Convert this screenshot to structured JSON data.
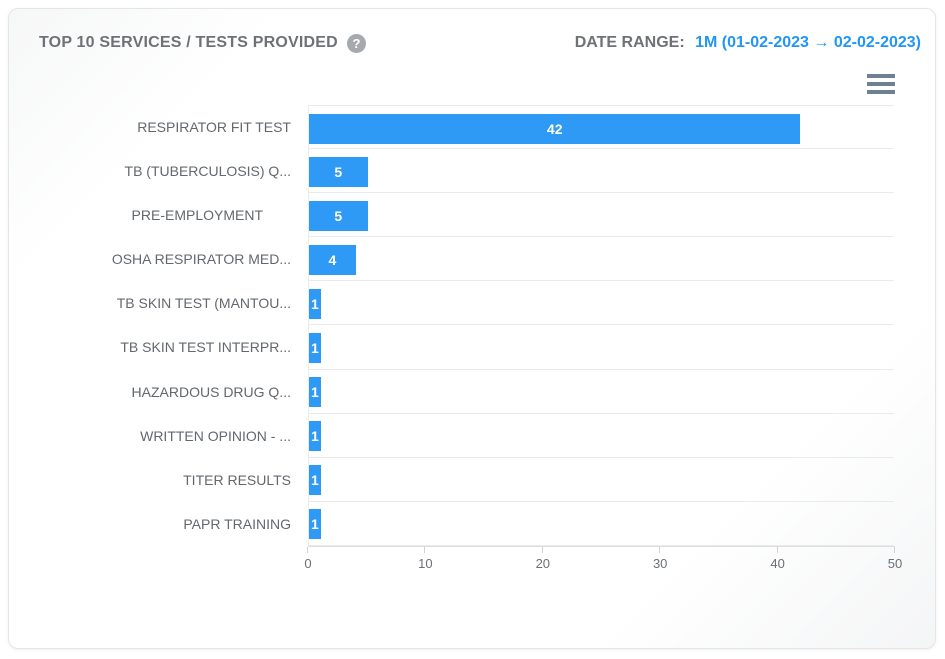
{
  "header": {
    "title": "TOP 10 SERVICES / TESTS PROVIDED",
    "help_icon": "question-mark-icon",
    "help_glyph": "?",
    "date_range_label": "DATE RANGE:",
    "date_range_value": "1M (01-02-2023 → 02-02-2023)"
  },
  "toolbar": {
    "menu_icon": "hamburger-menu-icon"
  },
  "colors": {
    "bar_fill": "#2f9af5",
    "date_range_blue": "#2196f3",
    "title_gray": "#6e7277",
    "menu_icon_gray": "#6e8192",
    "grid_line": "#e9eaeb",
    "value_label": "#ffffff"
  },
  "chart_data": {
    "type": "bar",
    "orientation": "horizontal",
    "title": "TOP 10 SERVICES / TESTS PROVIDED",
    "categories": [
      "RESPIRATOR FIT TEST",
      "TB (TUBERCULOSIS) Q...",
      "PRE-EMPLOYMENT",
      "OSHA RESPIRATOR MED...",
      "TB SKIN TEST (MANTOU...",
      "TB SKIN TEST INTERPR...",
      "HAZARDOUS DRUG Q...",
      "WRITTEN OPINION - ...",
      "TITER RESULTS",
      "PAPR TRAINING"
    ],
    "values": [
      42,
      5,
      5,
      4,
      1,
      1,
      1,
      1,
      1,
      1
    ],
    "data_labels_shown": true,
    "xlabel": "",
    "ylabel": "",
    "xlim": [
      0,
      50
    ],
    "x_ticks": [
      "0",
      "10",
      "20",
      "30",
      "40",
      "50"
    ],
    "grid": "horizontal-row-lines",
    "legend": "none"
  }
}
